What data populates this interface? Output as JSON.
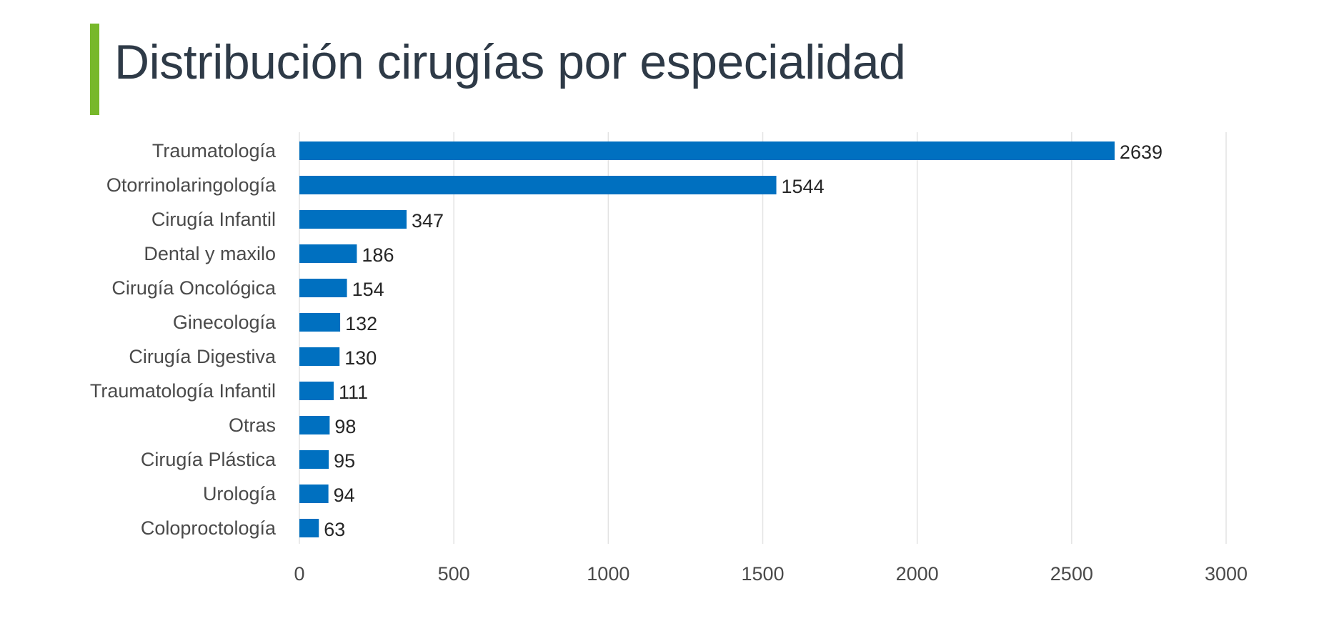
{
  "page": {
    "title": "Distribución cirugías por especialidad",
    "accent_color": "#77b82a"
  },
  "chart_data": {
    "type": "bar",
    "orientation": "horizontal",
    "categories": [
      "Traumatología",
      "Otorrinolaringología",
      "Cirugía Infantil",
      "Dental y maxilo",
      "Cirugía Oncológica",
      "Ginecología",
      "Cirugía Digestiva",
      "Traumatología Infantil",
      "Otras",
      "Cirugía Plástica",
      "Urología",
      "Coloproctología"
    ],
    "values": [
      2639,
      1544,
      347,
      186,
      154,
      132,
      130,
      111,
      98,
      95,
      94,
      63
    ],
    "xlim": [
      0,
      3000
    ],
    "x_ticks": [
      0,
      500,
      1000,
      1500,
      2000,
      2500,
      3000
    ],
    "grid": true,
    "data_labels": true,
    "bar_color": "#0070c0",
    "grid_color": "#e3e3e3"
  }
}
